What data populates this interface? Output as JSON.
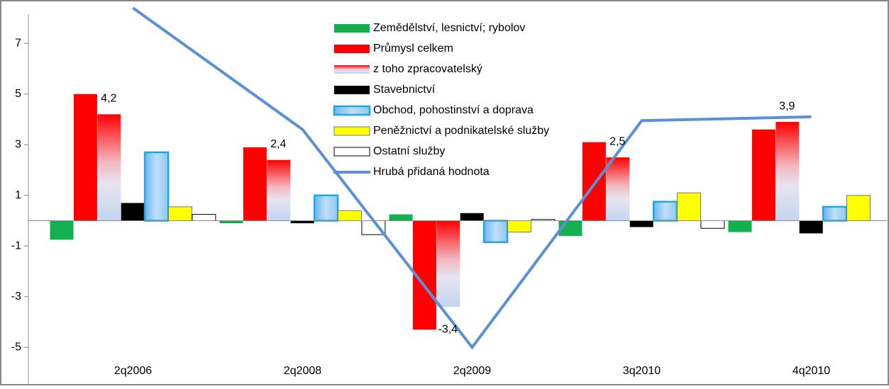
{
  "chart_data": {
    "type": "bar",
    "categories": [
      "2q2006",
      "2q2008",
      "2q2009",
      "3q2010",
      "4q2010"
    ],
    "series": [
      {
        "name": "Zemědělství, lesnictví; rybolov",
        "color": "#12b04e",
        "values": [
          -0.75,
          -0.1,
          0.25,
          -0.6,
          -0.45
        ]
      },
      {
        "name": "Průmysl celkem",
        "color": "#ff0000",
        "values": [
          5.0,
          2.9,
          -4.3,
          3.1,
          3.6
        ]
      },
      {
        "name": "z toho zpracovatelský",
        "color": "#ff0000",
        "gradient": true,
        "values": [
          4.2,
          2.4,
          -3.4,
          2.5,
          3.9
        ],
        "value_labels": [
          "4,2",
          "2,4",
          "-3,4",
          "2,5",
          "3,9"
        ]
      },
      {
        "name": "Stavebnictví",
        "color": "#000000",
        "values": [
          0.7,
          -0.1,
          0.3,
          -0.25,
          -0.5
        ]
      },
      {
        "name": "Obchod, pohostinství a doprava",
        "color": "#1ea6e6",
        "values": [
          2.7,
          1.0,
          -0.85,
          0.75,
          0.55
        ]
      },
      {
        "name": "Peněžnictví a podnikatelské služby",
        "color": "#ffff00",
        "values": [
          0.55,
          0.4,
          -0.45,
          1.1,
          1.0
        ]
      },
      {
        "name": "Ostatní služby",
        "color": "#ffffff",
        "values": [
          0.25,
          -0.55,
          0.05,
          -0.3,
          null
        ]
      },
      {
        "name": "Hrubá přidaná hodnota",
        "type": "line",
        "color": "#5b8fd6",
        "values": [
          8.4,
          3.6,
          -5.0,
          3.95,
          4.1
        ]
      }
    ],
    "ylim": [
      -6.4,
      8
    ],
    "yticks": [
      7,
      5,
      3,
      1,
      -1,
      -3,
      -5
    ]
  }
}
